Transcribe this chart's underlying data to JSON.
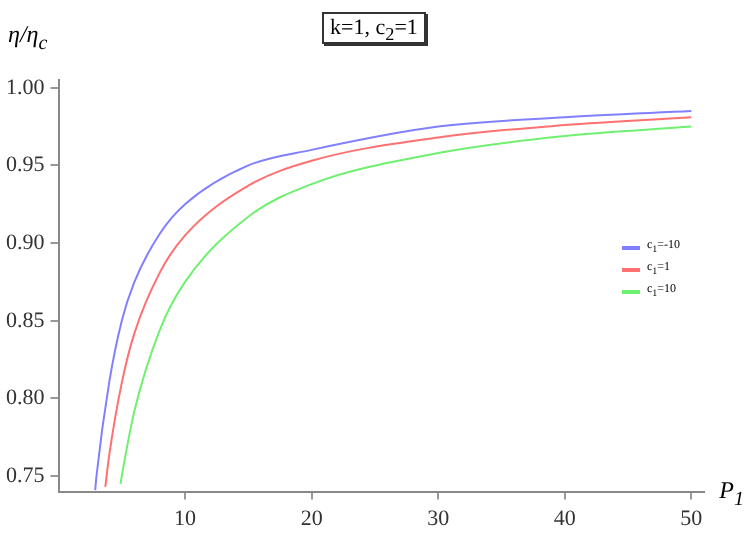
{
  "chart_data": {
    "type": "line",
    "title": "k=1, c$_{2}$=1",
    "xlabel": "P$_{1}$",
    "ylabel": "η/η$_{c}$",
    "xlim": [
      0,
      51
    ],
    "xticks": [
      10,
      20,
      30,
      40,
      50
    ],
    "ylim": [
      0.74,
      1.005
    ],
    "yticks": [
      {
        "value": 0.75,
        "label": "0.75"
      },
      {
        "value": 0.8,
        "label": "0.80"
      },
      {
        "value": 0.85,
        "label": "0.85"
      },
      {
        "value": 0.9,
        "label": "0.90"
      },
      {
        "value": 0.95,
        "label": "0.95"
      },
      {
        "value": 1,
        "label": "1.00"
      }
    ],
    "grid": false,
    "legend": "right",
    "marker": "none",
    "line_style": "solid",
    "series": [
      {
        "name": "c$_{1}$=-10",
        "color": "#8080ff",
        "x": [
          2.9,
          3,
          4,
          5,
          6,
          8,
          10,
          15,
          20,
          30,
          40,
          50
        ],
        "values": [
          0.741,
          0.75,
          0.81,
          0.85,
          0.875,
          0.906,
          0.925,
          0.95,
          0.96,
          0.975,
          0.981,
          0.985
        ]
      },
      {
        "name": "c$_{1}$=1",
        "color": "#ff7070",
        "x": [
          3.7,
          4,
          5,
          6,
          8,
          10,
          15,
          20,
          30,
          40,
          50
        ],
        "values": [
          0.743,
          0.763,
          0.81,
          0.842,
          0.881,
          0.905,
          0.937,
          0.953,
          0.968,
          0.976,
          0.981
        ]
      },
      {
        "name": "c$_{1}$=10",
        "color": "#70f070",
        "x": [
          4.9,
          5,
          6,
          8,
          10,
          15,
          20,
          30,
          40,
          50
        ],
        "values": [
          0.745,
          0.75,
          0.792,
          0.844,
          0.875,
          0.917,
          0.938,
          0.958,
          0.969,
          0.975
        ]
      }
    ]
  }
}
